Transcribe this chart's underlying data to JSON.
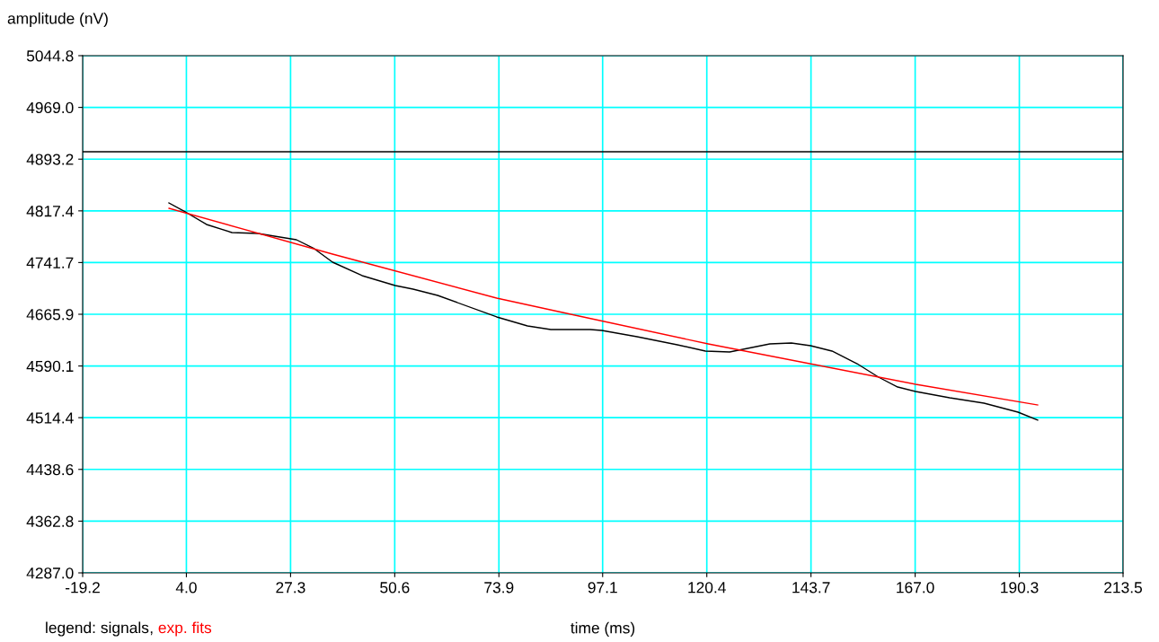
{
  "chart_data": {
    "type": "line",
    "xlabel": "time (ms)",
    "ylabel": "amplitude (nV)",
    "legend_title": "legend:",
    "legend": "bottom left",
    "grid": true,
    "annotations": [
      ","
    ],
    "xlim": [
      -19.2,
      213.5
    ],
    "xticks": [
      -19.2,
      {
        "value": 4,
        "label": "4.0"
      },
      27.3,
      50.6,
      73.9,
      97.1,
      120.4,
      143.7,
      {
        "value": 167,
        "label": "167.0"
      },
      190.3,
      213.5
    ],
    "ylim": [
      4287.0,
      5044.8
    ],
    "yticks": [
      {
        "value": 4287,
        "label": "4287.0"
      },
      4362.8,
      4438.6,
      4514.4,
      4590.1,
      4665.9,
      4741.7,
      4817.4,
      4893.2,
      {
        "value": 4969,
        "label": "4969.0"
      },
      5044.8
    ],
    "ref_lines": [
      {
        "axis": "y",
        "value": 4904.0,
        "color": "#000000"
      }
    ],
    "series": [
      {
        "name": "signals",
        "color": "#000000",
        "x": [
          0.1,
          4.1,
          8.5,
          14.2,
          20.0,
          28.6,
          32.6,
          36.7,
          43.3,
          50.7,
          54.7,
          60.2,
          73.4,
          80.3,
          85.5,
          94.3,
          96.9,
          104.8,
          113.8,
          120.1,
          125.5,
          134.5,
          139.3,
          143.6,
          148.4,
          154.0,
          158.8,
          163.1,
          167.1,
          174.7,
          182.4,
          190.0,
          194.4
        ],
        "values": [
          4829.0,
          4814.6,
          4797.5,
          4785.6,
          4784.3,
          4775.1,
          4762.0,
          4742.2,
          4722.5,
          4708.0,
          4702.7,
          4693.5,
          4662.0,
          4648.8,
          4643.5,
          4643.5,
          4642.2,
          4633.0,
          4621.2,
          4612.0,
          4610.6,
          4622.5,
          4623.8,
          4619.9,
          4612.0,
          4593.5,
          4573.8,
          4559.3,
          4552.7,
          4543.6,
          4535.7,
          4522.5,
          4510.7
        ]
      },
      {
        "name": "exp. fits",
        "color": "#ff0000",
        "x": [
          0.1,
          36.7,
          73.4,
          90.9,
          120.7,
          167.1,
          194.4
        ],
        "values": [
          4821.1,
          4754.1,
          4689.6,
          4664.6,
          4622.5,
          4563.3,
          4533.0
        ]
      }
    ]
  }
}
